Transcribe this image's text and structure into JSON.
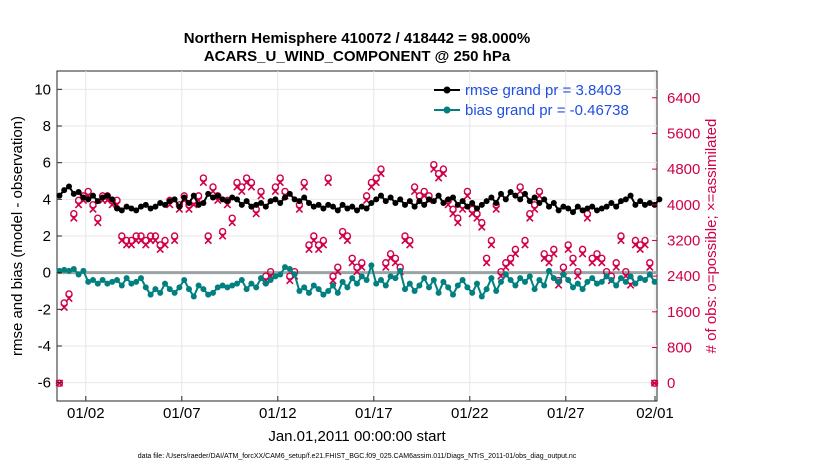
{
  "chart_data": {
    "type": "line",
    "title": "Northern Hemisphere 410072 / 418442 = 98.000%",
    "subtitle": "ACARS_U_WIND_COMPONENT @ 250 hPa",
    "xlabel": "Jan.01,2011 00:00:00 start",
    "ylabel": "rmse and bias (model - observation)",
    "y2label": "# of obs: o=possible; ×=assimilated",
    "footer": "data file: /Users/raeder/DAI/ATM_forcXX/CAM6_setup/f.e21.FHIST_BGC.f09_025.CAM6assim.011/Diags_NTrS_2011-01/obs_diag_output.nc",
    "ylim": [
      -7,
      11
    ],
    "y2lim": [
      -400,
      7000
    ],
    "xlim": [
      0,
      125
    ],
    "x_ticks": [
      {
        "x": 6,
        "label": "01/02"
      },
      {
        "x": 26,
        "label": "01/07"
      },
      {
        "x": 46,
        "label": "01/12"
      },
      {
        "x": 66,
        "label": "01/17"
      },
      {
        "x": 86,
        "label": "01/22"
      },
      {
        "x": 106,
        "label": "01/27"
      },
      {
        "x": 126,
        "label": "02/01"
      }
    ],
    "y_ticks": [
      "-6",
      "-4",
      "-2",
      "0",
      "2",
      "4",
      "6",
      "8",
      "10"
    ],
    "y2_ticks": [
      "0",
      "800",
      "1600",
      "2400",
      "3200",
      "4000",
      "4800",
      "5600",
      "6400"
    ],
    "series": [
      {
        "name": "rmse grand pr = 3.8403",
        "color": "#000000",
        "axis": "left",
        "values": [
          4.2,
          4.5,
          4.7,
          4.3,
          4.4,
          4.1,
          4.0,
          4.2,
          3.9,
          4.1,
          4.2,
          4.0,
          3.5,
          3.4,
          3.6,
          3.5,
          3.4,
          3.6,
          3.7,
          3.5,
          3.6,
          3.8,
          3.7,
          3.9,
          4.0,
          3.6,
          4.1,
          3.8,
          4.2,
          3.7,
          3.8,
          4.3,
          4.1,
          4.2,
          4.0,
          3.9,
          4.1,
          4.0,
          3.7,
          3.9,
          3.6,
          3.7,
          3.8,
          3.6,
          3.9,
          4.0,
          3.8,
          4.1,
          4.3,
          4.0,
          3.9,
          4.1,
          3.8,
          3.6,
          3.7,
          3.5,
          3.7,
          3.6,
          3.4,
          3.7,
          3.5,
          3.6,
          3.4,
          3.6,
          3.5,
          3.8,
          4.0,
          4.2,
          3.9,
          4.1,
          3.8,
          4.0,
          3.7,
          3.9,
          3.6,
          3.9,
          3.7,
          4.0,
          3.9,
          4.2,
          3.8,
          4.0,
          4.1,
          3.7,
          3.9,
          3.6,
          3.8,
          3.5,
          3.7,
          3.9,
          4.1,
          3.8,
          4.3,
          4.0,
          4.4,
          4.2,
          4.0,
          4.3,
          3.9,
          4.1,
          3.8,
          4.0,
          3.6,
          3.8,
          3.4,
          3.6,
          3.5,
          3.3,
          3.6,
          3.4,
          3.5,
          3.6,
          3.4,
          3.5,
          3.6,
          3.8,
          3.6,
          3.9,
          4.0,
          4.2,
          3.7,
          3.9,
          3.7,
          3.8,
          3.7,
          4.0
        ]
      },
      {
        "name": "bias grand pr = -0.46738",
        "color": "#00807f",
        "axis": "left",
        "values": [
          0.1,
          0.15,
          0.1,
          0.2,
          -0.1,
          0.1,
          -0.5,
          -0.4,
          -0.6,
          -0.4,
          -0.6,
          -0.5,
          -0.4,
          -0.7,
          -0.3,
          -0.6,
          -0.5,
          -0.3,
          -0.8,
          -1.2,
          -0.9,
          -1.1,
          -0.6,
          -0.9,
          -1.1,
          -0.8,
          -0.4,
          -0.9,
          -1.3,
          -0.7,
          -0.9,
          -1.2,
          -1.1,
          -0.8,
          -0.7,
          -0.8,
          -0.7,
          -0.6,
          -0.4,
          -0.9,
          -0.6,
          -0.8,
          -0.3,
          -0.6,
          -0.4,
          -0.2,
          -0.1,
          0.3,
          0.2,
          -0.1,
          -1.0,
          -0.8,
          -1.1,
          -0.7,
          -0.9,
          -1.2,
          -1.0,
          -0.7,
          -1.1,
          -0.5,
          -0.8,
          -0.3,
          -0.6,
          -0.2,
          -0.4,
          0.4,
          -0.6,
          -0.4,
          -0.7,
          -0.2,
          -0.3,
          0.1,
          -0.9,
          -0.6,
          -1.0,
          -0.7,
          -0.3,
          -0.8,
          -0.4,
          -1.1,
          -0.5,
          -0.8,
          -1.2,
          -0.7,
          -0.4,
          -0.8,
          -1.1,
          -0.6,
          -1.3,
          -0.9,
          -0.3,
          -1.0,
          -0.5,
          -0.1,
          -0.4,
          -0.7,
          -0.3,
          -0.5,
          -0.2,
          -0.9,
          -0.4,
          -0.7,
          0.1,
          -0.3,
          -0.5,
          -0.1,
          -0.4,
          -0.8,
          -0.6,
          -0.9,
          -0.5,
          -0.3,
          -0.6,
          -0.5,
          -0.2,
          -0.4,
          -0.7,
          -0.3,
          -0.5,
          -0.2,
          -0.6,
          -0.3,
          -0.4,
          -0.1,
          -0.5
        ]
      },
      {
        "name": "possible",
        "color": "#d0004a",
        "axis": "right",
        "values": [
          0,
          1800,
          2000,
          3800,
          4100,
          4200,
          4300,
          4000,
          3700,
          4200,
          4200,
          4100,
          4100,
          3300,
          3200,
          3200,
          3300,
          3300,
          3200,
          3300,
          3300,
          3100,
          3200,
          4100,
          3300,
          4000,
          4200,
          4000,
          4100,
          4200,
          4600,
          3300,
          4400,
          4200,
          3400,
          4100,
          3700,
          4500,
          4400,
          4600,
          4500,
          3900,
          4300,
          2400,
          2500,
          4400,
          4600,
          4300,
          2400,
          2500,
          4000,
          4500,
          3100,
          3300,
          3100,
          3200,
          4600,
          2400,
          2600,
          3400,
          3300,
          2800,
          2600,
          2700,
          4200,
          4500,
          4600,
          4800,
          2700,
          2900,
          2800,
          2600,
          3300,
          3200,
          4400,
          4200,
          4300,
          4200,
          4900,
          4700,
          4800,
          4100,
          3900,
          3700,
          4000,
          4300,
          3900,
          3800,
          3600,
          2800,
          3200,
          4000,
          2500,
          2700,
          2800,
          3000,
          4400,
          3200,
          3800,
          4000,
          4300,
          2900,
          2800,
          3000,
          2300,
          2600,
          3100,
          2800,
          2500,
          3000,
          3800,
          2800,
          2900,
          2800,
          2500,
          2400,
          2700,
          3300,
          2500,
          2300,
          3200,
          3100,
          3200,
          2700,
          0
        ]
      },
      {
        "name": "assimilated",
        "color": "#d0004a",
        "axis": "right",
        "values": [
          0,
          1700,
          1900,
          3700,
          4000,
          4100,
          4200,
          3900,
          3600,
          4100,
          4100,
          4000,
          4000,
          3200,
          3100,
          3100,
          3200,
          3200,
          3100,
          3200,
          3200,
          3000,
          3100,
          4000,
          3200,
          3900,
          4100,
          3900,
          4000,
          4100,
          4500,
          3200,
          4300,
          4100,
          3300,
          4000,
          3600,
          4400,
          4300,
          4500,
          4400,
          3800,
          4200,
          2300,
          2400,
          4300,
          4500,
          4200,
          2300,
          2400,
          3900,
          4400,
          3000,
          3200,
          3000,
          3100,
          4500,
          2300,
          2500,
          3300,
          3200,
          2700,
          2500,
          2600,
          4100,
          4400,
          4500,
          4700,
          2600,
          2800,
          2700,
          2500,
          3200,
          3100,
          4300,
          4100,
          4200,
          4100,
          4800,
          4600,
          4700,
          4000,
          3800,
          3600,
          3900,
          4200,
          3800,
          3700,
          3500,
          2700,
          3100,
          3900,
          2400,
          2600,
          2700,
          2900,
          4300,
          3100,
          3700,
          3900,
          4200,
          2800,
          2700,
          2900,
          2200,
          2500,
          3000,
          2700,
          2400,
          2900,
          3700,
          2700,
          2800,
          2700,
          2400,
          2300,
          2600,
          3200,
          2400,
          2200,
          3100,
          3000,
          3100,
          2600,
          0
        ]
      }
    ],
    "legend_position": "top-right"
  }
}
